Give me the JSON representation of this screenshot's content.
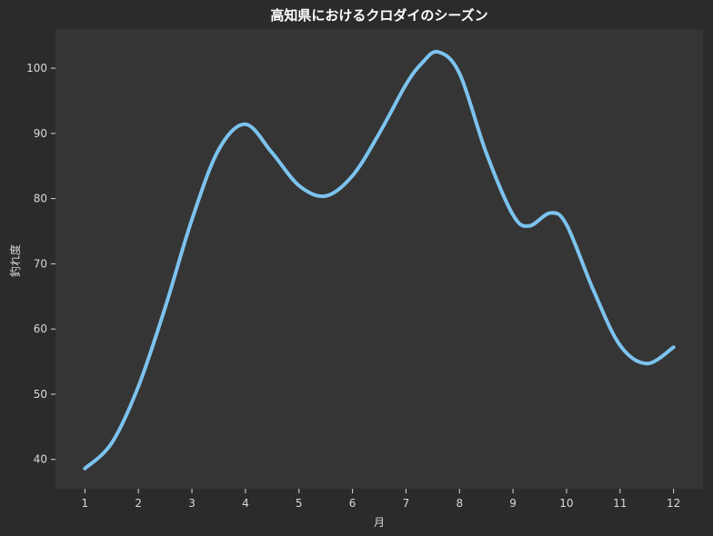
{
  "chart_data": {
    "type": "line",
    "title": "高知県におけるクロダイのシーズン",
    "xlabel": "月",
    "ylabel": "釣れ度",
    "x": [
      1,
      2,
      3,
      4,
      5,
      6,
      7,
      8,
      9,
      10,
      11,
      12
    ],
    "x_tick_labels": [
      "1",
      "2",
      "3",
      "4",
      "5",
      "6",
      "7",
      "8",
      "9",
      "10",
      "11",
      "12"
    ],
    "y_ticks": [
      40,
      50,
      60,
      70,
      80,
      90,
      100
    ],
    "y_tick_labels": [
      "40",
      "50",
      "60",
      "70",
      "80",
      "90",
      "100"
    ],
    "xlim": [
      0.45,
      12.55
    ],
    "ylim": [
      35.5,
      106
    ],
    "grid": false,
    "smooth": true,
    "series": [
      {
        "x": [
          1,
          1.5,
          2,
          2.5,
          3,
          3.5,
          4,
          4.5,
          5,
          5.5,
          6,
          6.5,
          7,
          7.3,
          7.6,
          8,
          8.5,
          9,
          9.3,
          9.7,
          10,
          10.5,
          11,
          11.5,
          12
        ],
        "values": [
          38.6,
          42.5,
          51.2,
          63.3,
          76.8,
          87.5,
          91.4,
          87,
          82,
          80.4,
          83.5,
          90,
          97.5,
          100.8,
          102.5,
          99.2,
          87,
          77.5,
          75.8,
          77.8,
          76,
          66,
          57.5,
          54.7,
          57.2
        ],
        "color": "#7cc3ef"
      }
    ],
    "colors": {
      "background": "#2b2b2b",
      "plot_background": "#353535",
      "text": "#d9d9d9",
      "line": "#7cc3ef"
    }
  }
}
